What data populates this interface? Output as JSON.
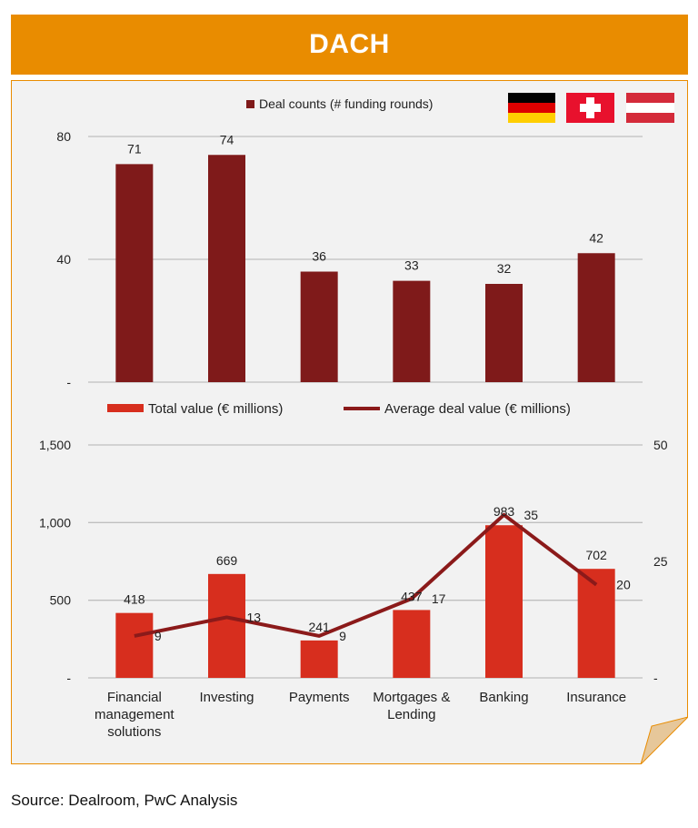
{
  "header": {
    "title": "DACH"
  },
  "flags": [
    {
      "name": "Germany",
      "icon": "germany-flag-icon",
      "colors": [
        "#000000",
        "#DD0000",
        "#FFCE00"
      ]
    },
    {
      "name": "Switzerland",
      "icon": "switzerland-flag-icon",
      "colors": [
        "#E8112D",
        "#FFFFFF"
      ]
    },
    {
      "name": "Austria",
      "icon": "austria-flag-icon",
      "colors": [
        "#D42B3A",
        "#FFFFFF",
        "#D42B3A"
      ]
    }
  ],
  "colors": {
    "accent": "#E98C00",
    "deal_bar": "#7F1A1A",
    "value_bar": "#D72E1E",
    "avg_line": "#8B1A1A"
  },
  "chart_data": [
    {
      "type": "bar",
      "title": "",
      "legend": [
        "Deal counts (# funding rounds)"
      ],
      "categories": [
        "Financial management solutions",
        "Investing",
        "Payments",
        "Mortgages & Lending",
        "Banking",
        "Insurance"
      ],
      "series": [
        {
          "name": "Deal counts (# funding rounds)",
          "values": [
            71,
            74,
            36,
            33,
            32,
            42
          ]
        }
      ],
      "ylim": [
        0,
        80
      ],
      "yticks": [
        0,
        40,
        80
      ],
      "ytick_labels": [
        "-",
        "40",
        "80"
      ],
      "grid": true,
      "data_labels": [
        "71",
        "74",
        "36",
        "33",
        "32",
        "42"
      ]
    },
    {
      "type": "bar",
      "title": "",
      "legend": [
        "Total value (€ millions)",
        "Average deal value (€ millions)"
      ],
      "categories": [
        "Financial management solutions",
        "Investing",
        "Payments",
        "Mortgages & Lending",
        "Banking",
        "Insurance"
      ],
      "category_labels": [
        [
          "Financial",
          "management",
          "solutions"
        ],
        [
          "Investing"
        ],
        [
          "Payments"
        ],
        [
          "Mortgages &",
          "Lending"
        ],
        [
          "Banking"
        ],
        [
          "Insurance"
        ]
      ],
      "series": [
        {
          "name": "Total value (€ millions)",
          "type": "bar",
          "axis": "left",
          "values": [
            418,
            669,
            241,
            437,
            983,
            702
          ],
          "labels": [
            "418",
            "669",
            "241",
            "437",
            "983",
            "702"
          ]
        },
        {
          "name": "Average deal value (€ millions)",
          "type": "line",
          "axis": "right",
          "values": [
            9,
            13,
            9,
            17,
            35,
            20
          ],
          "labels": [
            "9",
            "13",
            "9",
            "17",
            "35",
            "20"
          ]
        }
      ],
      "ylim": [
        0,
        1500
      ],
      "yticks": [
        0,
        500,
        1000,
        1500
      ],
      "ytick_labels": [
        "-",
        "500",
        "1,000",
        "1,500"
      ],
      "y2lim": [
        0,
        50
      ],
      "y2ticks": [
        0,
        25,
        50
      ],
      "y2tick_labels": [
        "-",
        "25",
        "50"
      ],
      "grid": true
    }
  ],
  "footer": {
    "source": "Source: Dealroom, PwC Analysis"
  }
}
